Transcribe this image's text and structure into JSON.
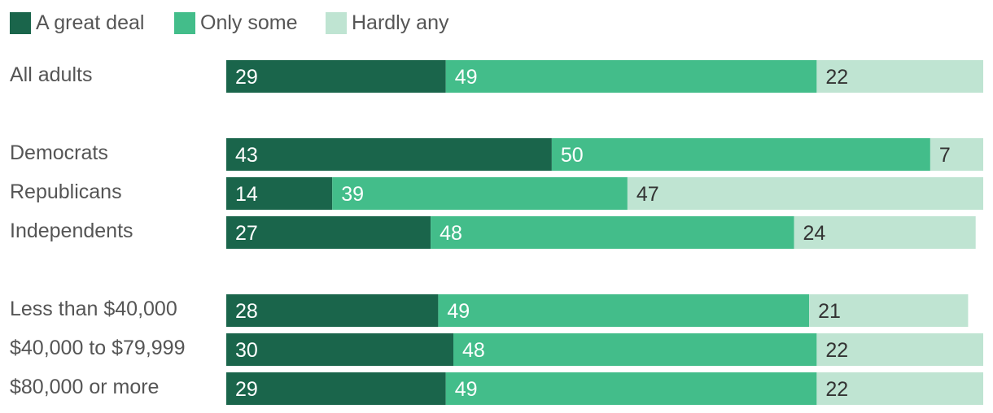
{
  "chart_data": {
    "type": "bar",
    "orientation": "horizontal",
    "stacked": true,
    "xlim": [
      0,
      100
    ],
    "grid": false,
    "legend_position": "top-left",
    "categories": [
      "All adults",
      "Democrats",
      "Republicans",
      "Independents",
      "Less than $40,000",
      "$40,000 to $79,999",
      "$80,000 or more"
    ],
    "groups": [
      [
        0
      ],
      [
        1,
        2,
        3
      ],
      [
        4,
        5,
        6
      ]
    ],
    "series": [
      {
        "name": "A great deal",
        "color": "#1a654b",
        "label_color": "#ffffff",
        "values": [
          29,
          43,
          14,
          27,
          28,
          30,
          29
        ]
      },
      {
        "name": "Only some",
        "color": "#43bd8a",
        "label_color": "#ffffff",
        "values": [
          49,
          50,
          39,
          48,
          49,
          48,
          49
        ]
      },
      {
        "name": "Hardly any",
        "color": "#bfe4d2",
        "label_color": "#333333",
        "values": [
          22,
          7,
          47,
          24,
          21,
          22,
          22
        ]
      }
    ]
  }
}
